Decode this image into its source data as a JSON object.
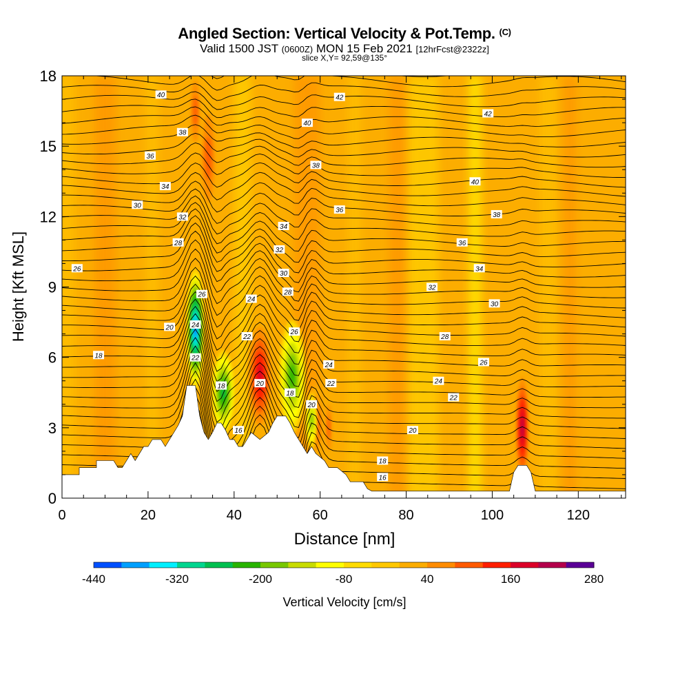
{
  "header": {
    "title": "Angled Section: Vertical Velocity & Pot.Temp.",
    "copyright_mark": "(C)",
    "valid_prefix": "Valid 1500 JST",
    "valid_zulu": "(0600Z)",
    "valid_date": "MON 15 Feb 2021",
    "forecast": "[12hrFcst@2322z]",
    "slice": "slice X,Y= 92,59@135°"
  },
  "colors": {
    "background_field": "#fcad00",
    "terrain": "#ffffff",
    "contour": "#000000",
    "colorbar": [
      "#0000ff",
      "#0050ff",
      "#00a0ff",
      "#00f0ff",
      "#00d68f",
      "#00c050",
      "#28b400",
      "#78c800",
      "#c8dc00",
      "#ffff00",
      "#ffdc00",
      "#ffc800",
      "#fcad00",
      "#ff8c00",
      "#ff5a00",
      "#ff1e00",
      "#dc0028",
      "#b4004b",
      "#8c0073",
      "#5a0096"
    ]
  },
  "chart_data": {
    "type": "heatmap",
    "xlabel": "Distance [nm]",
    "ylabel": "Height [Kft MSL]",
    "xlim": [
      0,
      131
    ],
    "ylim": [
      0,
      18
    ],
    "xticks": [
      "0",
      "20",
      "40",
      "60",
      "80",
      "100",
      "120"
    ],
    "yticks": [
      "0",
      "3",
      "6",
      "9",
      "12",
      "15",
      "18"
    ],
    "colorbar": {
      "label": "Vertical Velocity [cm/s]",
      "min": -440,
      "max": 280,
      "step": 40,
      "tick_labels": [
        "-440",
        "-320",
        "-200",
        "-80",
        "40",
        "160",
        "280"
      ]
    },
    "terrain_profile": [
      [
        0,
        1.0
      ],
      [
        4,
        1.0
      ],
      [
        4,
        1.3
      ],
      [
        8,
        1.3
      ],
      [
        8,
        1.6
      ],
      [
        12,
        1.6
      ],
      [
        13,
        1.3
      ],
      [
        14,
        1.3
      ],
      [
        15,
        1.6
      ],
      [
        16,
        1.9
      ],
      [
        17,
        1.6
      ],
      [
        18,
        1.9
      ],
      [
        19,
        2.2
      ],
      [
        20,
        2.2
      ],
      [
        21,
        2.5
      ],
      [
        23,
        2.5
      ],
      [
        24,
        2.2
      ],
      [
        25,
        2.5
      ],
      [
        26,
        2.8
      ],
      [
        27,
        3.1
      ],
      [
        28,
        3.5
      ],
      [
        29,
        4.8
      ],
      [
        31,
        4.8
      ],
      [
        32,
        3.5
      ],
      [
        33,
        2.8
      ],
      [
        34,
        2.5
      ],
      [
        35,
        2.8
      ],
      [
        36,
        3.2
      ],
      [
        37,
        3.2
      ],
      [
        38,
        2.9
      ],
      [
        39,
        2.5
      ],
      [
        40,
        2.5
      ],
      [
        41,
        2.2
      ],
      [
        42,
        2.2
      ],
      [
        43,
        2.5
      ],
      [
        44,
        2.8
      ],
      [
        46,
        2.5
      ],
      [
        48,
        2.8
      ],
      [
        49,
        3.2
      ],
      [
        50,
        3.5
      ],
      [
        52,
        3.5
      ],
      [
        53,
        3.2
      ],
      [
        54,
        2.8
      ],
      [
        55,
        2.5
      ],
      [
        56,
        2.2
      ],
      [
        57,
        1.9
      ],
      [
        58,
        2.2
      ],
      [
        59,
        1.9
      ],
      [
        61,
        1.6
      ],
      [
        62,
        1.3
      ],
      [
        64,
        1.3
      ],
      [
        66,
        1.0
      ],
      [
        67,
        0.7
      ],
      [
        70,
        0.7
      ],
      [
        71,
        0.4
      ],
      [
        72,
        0.3
      ],
      [
        104,
        0.3
      ],
      [
        105,
        1.1
      ],
      [
        106,
        1.4
      ],
      [
        108,
        1.4
      ],
      [
        109,
        1.1
      ],
      [
        110,
        0.3
      ],
      [
        131,
        0.3
      ]
    ],
    "updraft_regions": [
      {
        "x": 46,
        "y": 5.2,
        "rx": 3.0,
        "ry": 2.6,
        "value": 200
      },
      {
        "x": 107,
        "y": 3.0,
        "rx": 1.6,
        "ry": 2.6,
        "value": 240
      },
      {
        "x": 34,
        "y": 14.5,
        "rx": 2.2,
        "ry": 2.8,
        "value": 120
      },
      {
        "x": 59,
        "y": 3.2,
        "rx": 1.6,
        "ry": 1.6,
        "value": 160
      },
      {
        "x": 62,
        "y": 3.0,
        "rx": 1.0,
        "ry": 1.5,
        "value": 120
      },
      {
        "x": 31,
        "y": 16.5,
        "rx": 1.5,
        "ry": 2.0,
        "value": 120
      }
    ],
    "downdraft_regions": [
      {
        "x": 31,
        "y": 7.2,
        "rx": 1.8,
        "ry": 2.6,
        "value": -400
      },
      {
        "x": 37.5,
        "y": 4.5,
        "rx": 2.6,
        "ry": 1.8,
        "value": -240
      },
      {
        "x": 53.5,
        "y": 5.2,
        "rx": 3.0,
        "ry": 2.4,
        "value": -200
      },
      {
        "x": 58,
        "y": 3.3,
        "rx": 1.3,
        "ry": 1.2,
        "value": -160
      }
    ],
    "contour_labels": [
      {
        "text": "40",
        "x": 23,
        "y": 17.2
      },
      {
        "text": "38",
        "x": 28,
        "y": 15.6
      },
      {
        "text": "36",
        "x": 20.5,
        "y": 14.6
      },
      {
        "text": "34",
        "x": 24,
        "y": 13.3
      },
      {
        "text": "30",
        "x": 17.5,
        "y": 12.5
      },
      {
        "text": "32",
        "x": 28,
        "y": 12.0
      },
      {
        "text": "28",
        "x": 27,
        "y": 10.9
      },
      {
        "text": "26",
        "x": 3.5,
        "y": 9.8
      },
      {
        "text": "26",
        "x": 32.5,
        "y": 8.7
      },
      {
        "text": "24",
        "x": 31,
        "y": 7.4
      },
      {
        "text": "20",
        "x": 25,
        "y": 7.3
      },
      {
        "text": "22",
        "x": 31,
        "y": 6.0
      },
      {
        "text": "18",
        "x": 8.5,
        "y": 6.1
      },
      {
        "text": "18",
        "x": 37,
        "y": 4.8
      },
      {
        "text": "16",
        "x": 41,
        "y": 2.9
      },
      {
        "text": "22",
        "x": 43,
        "y": 6.9
      },
      {
        "text": "24",
        "x": 44,
        "y": 8.5
      },
      {
        "text": "20",
        "x": 46,
        "y": 4.9
      },
      {
        "text": "42",
        "x": 64.5,
        "y": 17.1
      },
      {
        "text": "40",
        "x": 57,
        "y": 16.0
      },
      {
        "text": "38",
        "x": 59,
        "y": 14.2
      },
      {
        "text": "36",
        "x": 64.5,
        "y": 12.3
      },
      {
        "text": "34",
        "x": 51.5,
        "y": 11.6
      },
      {
        "text": "32",
        "x": 50.5,
        "y": 10.6
      },
      {
        "text": "30",
        "x": 51.5,
        "y": 9.6
      },
      {
        "text": "28",
        "x": 52.5,
        "y": 8.8
      },
      {
        "text": "26",
        "x": 54,
        "y": 7.1
      },
      {
        "text": "18",
        "x": 53,
        "y": 4.5
      },
      {
        "text": "20",
        "x": 58,
        "y": 4.0
      },
      {
        "text": "22",
        "x": 62.5,
        "y": 4.9
      },
      {
        "text": "24",
        "x": 62,
        "y": 5.7
      },
      {
        "text": "42",
        "x": 99,
        "y": 16.4
      },
      {
        "text": "40",
        "x": 96,
        "y": 13.5
      },
      {
        "text": "38",
        "x": 101,
        "y": 12.1
      },
      {
        "text": "36",
        "x": 93,
        "y": 10.9
      },
      {
        "text": "34",
        "x": 97,
        "y": 9.8
      },
      {
        "text": "32",
        "x": 86,
        "y": 9.0
      },
      {
        "text": "30",
        "x": 100.5,
        "y": 8.3
      },
      {
        "text": "28",
        "x": 89,
        "y": 6.9
      },
      {
        "text": "26",
        "x": 98,
        "y": 5.8
      },
      {
        "text": "24",
        "x": 87.5,
        "y": 5.0
      },
      {
        "text": "22",
        "x": 91,
        "y": 4.3
      },
      {
        "text": "20",
        "x": 81.5,
        "y": 2.9
      },
      {
        "text": "18",
        "x": 74.5,
        "y": 1.6
      },
      {
        "text": "16",
        "x": 74.5,
        "y": 0.9
      }
    ]
  }
}
